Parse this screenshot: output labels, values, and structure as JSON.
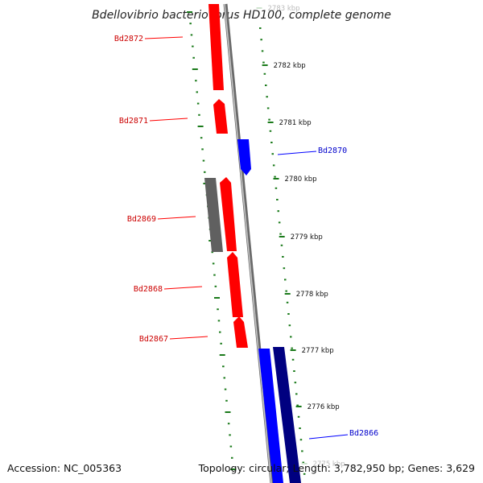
{
  "title": "Bdellovibrio bacteriovorus HD100, complete genome",
  "footer": {
    "accession": "Accession: NC_005363",
    "summary": "Topology: circular; Length: 3,782,950 bp; Genes: 3,629"
  },
  "colors": {
    "forward_gene": "#ff0000",
    "reverse_gene": "#0000ff",
    "reverse_gene_dark": "#000080",
    "pseudo_gene": "#606060",
    "backbone": "#888888",
    "ticks": "#1a7a1a"
  },
  "ruler": {
    "ticks": [
      {
        "label": "2783 kbp",
        "faint": true
      },
      {
        "label": "2782 kbp"
      },
      {
        "label": "2781 kbp"
      },
      {
        "label": "2780 kbp"
      },
      {
        "label": "2779 kbp"
      },
      {
        "label": "2778 kbp"
      },
      {
        "label": "2777 kbp"
      },
      {
        "label": "2776 kbp"
      },
      {
        "label": "2775 kbp",
        "faint": true
      }
    ]
  },
  "gene_labels": {
    "left": [
      "Bd2872",
      "Bd2871",
      "Bd2869",
      "Bd2868",
      "Bd2867"
    ],
    "right": [
      "Bd2870",
      "Bd2866"
    ]
  }
}
